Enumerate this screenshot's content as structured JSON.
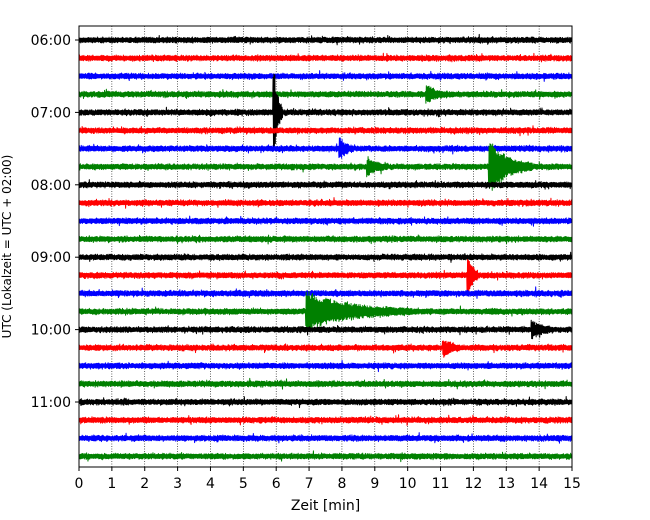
{
  "chart_data": {
    "type": "line",
    "title": "",
    "xlabel": "Zeit  [min]",
    "ylabel": "UTC (Lokalzeit = UTC + 02:00)",
    "xlim": [
      0,
      15
    ],
    "x_ticks": [
      "0",
      "1",
      "2",
      "3",
      "4",
      "5",
      "6",
      "7",
      "8",
      "9",
      "10",
      "11",
      "12",
      "13",
      "14",
      "15"
    ],
    "y_ticks": [
      {
        "label": "06:00",
        "row": 0
      },
      {
        "label": "07:00",
        "row": 4
      },
      {
        "label": "08:00",
        "row": 8
      },
      {
        "label": "09:00",
        "row": 12
      },
      {
        "label": "10:00",
        "row": 16
      },
      {
        "label": "11:00",
        "row": 20
      }
    ],
    "grid": "vertical",
    "trace_colors": [
      "#000000",
      "#ff0000",
      "#0000ff",
      "#008000"
    ],
    "row_count": 24,
    "row_interval_minutes": 15,
    "events": [
      {
        "row": 4,
        "minute": 5.95,
        "amplitude": 2.2,
        "duration": 0.25
      },
      {
        "row": 7,
        "minute": 12.5,
        "amplitude": 1.4,
        "duration": 1.3
      },
      {
        "row": 13,
        "minute": 11.85,
        "amplitude": 1.0,
        "duration": 0.3
      },
      {
        "row": 15,
        "minute": 6.95,
        "amplitude": 1.0,
        "duration": 3.2
      },
      {
        "row": 16,
        "minute": 13.8,
        "amplitude": 0.4,
        "duration": 0.6
      },
      {
        "row": 17,
        "minute": 11.1,
        "amplitude": 0.4,
        "duration": 0.5
      },
      {
        "row": 6,
        "minute": 7.95,
        "amplitude": 0.5,
        "duration": 0.4
      },
      {
        "row": 3,
        "minute": 10.6,
        "amplitude": 0.4,
        "duration": 0.6
      },
      {
        "row": 7,
        "minute": 8.8,
        "amplitude": 0.4,
        "duration": 0.6
      }
    ]
  }
}
